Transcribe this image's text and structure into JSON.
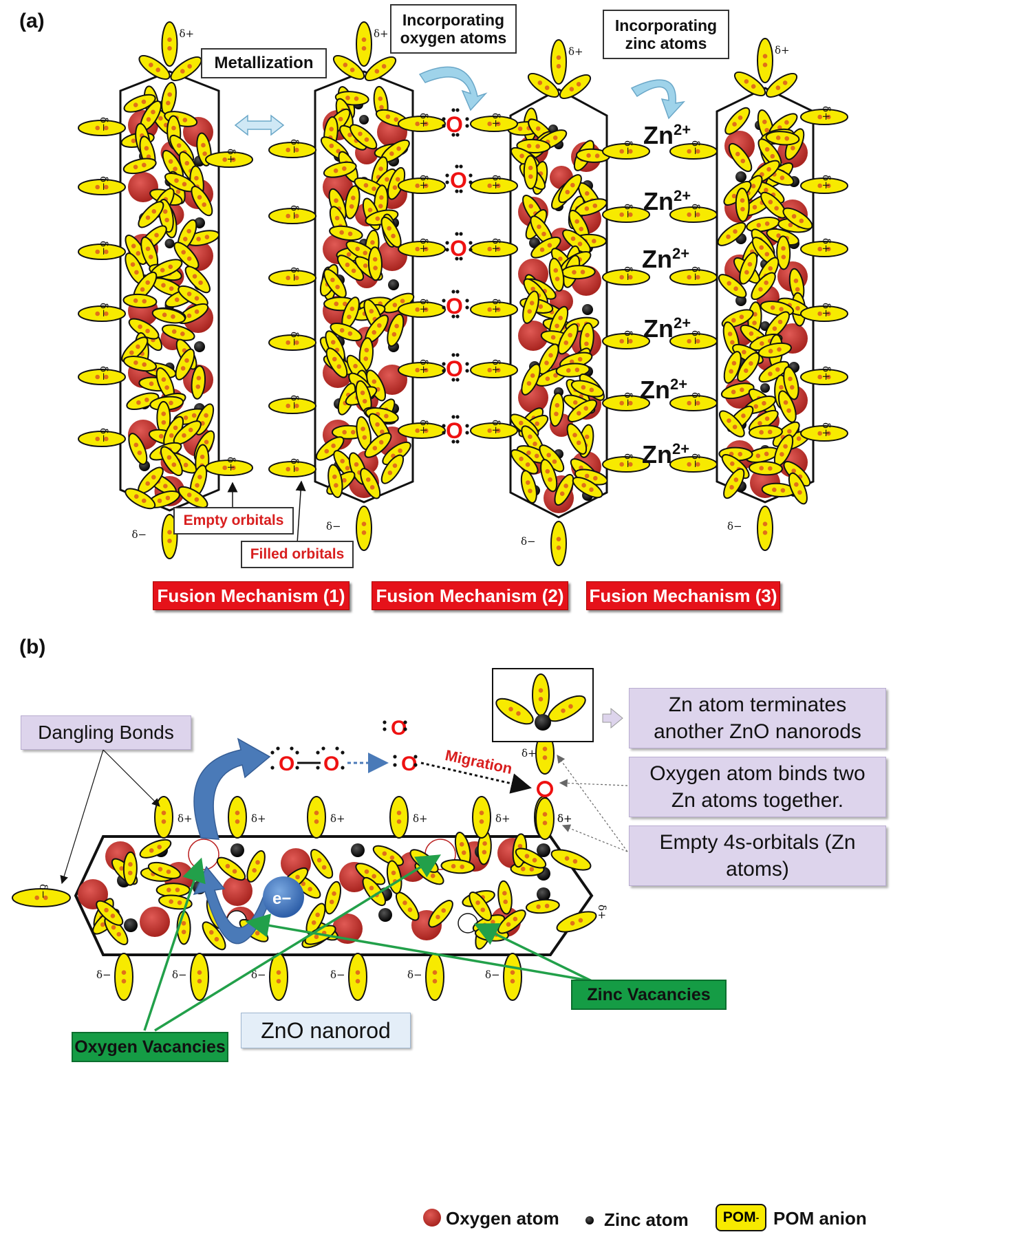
{
  "panel_a": {
    "label": "(a)",
    "metallization": "Metallization",
    "incorporating_oxygen": "Incorporating oxygen atoms",
    "incorporating_zinc": "Incorporating zinc atoms",
    "empty_orbitals": "Empty orbitals",
    "filled_orbitals": "Filled orbitals",
    "oxygen_symbol": "O",
    "zinc_ion": "Zn",
    "zinc_charge": "2+",
    "fusion_1": "Fusion Mechanism (1)",
    "fusion_2": "Fusion Mechanism (2)",
    "fusion_3": "Fusion Mechanism (3)",
    "delta_plus": "δ+",
    "delta_minus": "δ−"
  },
  "panel_b": {
    "label": "(b)",
    "dangling_bonds": "Dangling Bonds",
    "zn_terminates": "Zn atom terminates another ZnO  nanorods",
    "oxygen_binds": "Oxygen atom binds two Zn atoms together.",
    "empty_4s": "Empty 4s-orbitals (Zn atoms)",
    "migration": "Migration",
    "electron": "e−",
    "zinc_vacancies": "Zinc Vacancies",
    "oxygen_vacancies": "Oxygen Vacancies",
    "zno_nanorod": "ZnO nanorod",
    "oxygen_symbol": "O"
  },
  "legend": {
    "oxygen_atom": "Oxygen atom",
    "zinc_atom": "Zinc atom",
    "pom_box": "POM",
    "pom_box_sup": "-",
    "pom_anion": "POM anion"
  },
  "colors": {
    "pom_yellow": "#f7ea00",
    "oxygen_red": "#c8302a",
    "zinc_black": "#111111",
    "fusion_red": "#e5121a",
    "lavender": "#ddd4ec",
    "green": "#159c45",
    "arrow_blue": "#4a7ab8",
    "arrow_green": "#22a04a"
  }
}
